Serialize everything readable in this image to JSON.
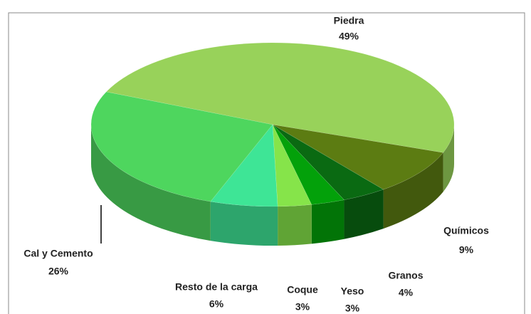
{
  "chart_data": {
    "type": "pie3d",
    "categories": [
      "Piedra",
      "Químicos",
      "Granos",
      "Yeso",
      "Coque",
      "Resto de la carga",
      "Cal y Cemento"
    ],
    "values": [
      49,
      9,
      4,
      3,
      3,
      6,
      26
    ],
    "value_labels": [
      "49%",
      "9%",
      "4%",
      "3%",
      "3%",
      "6%",
      "26%"
    ],
    "colors": [
      "#98d25a",
      "#5c7c12",
      "#0a6a12",
      "#03a10a",
      "#86e44a",
      "#3ee596",
      "#4ed65e"
    ]
  }
}
